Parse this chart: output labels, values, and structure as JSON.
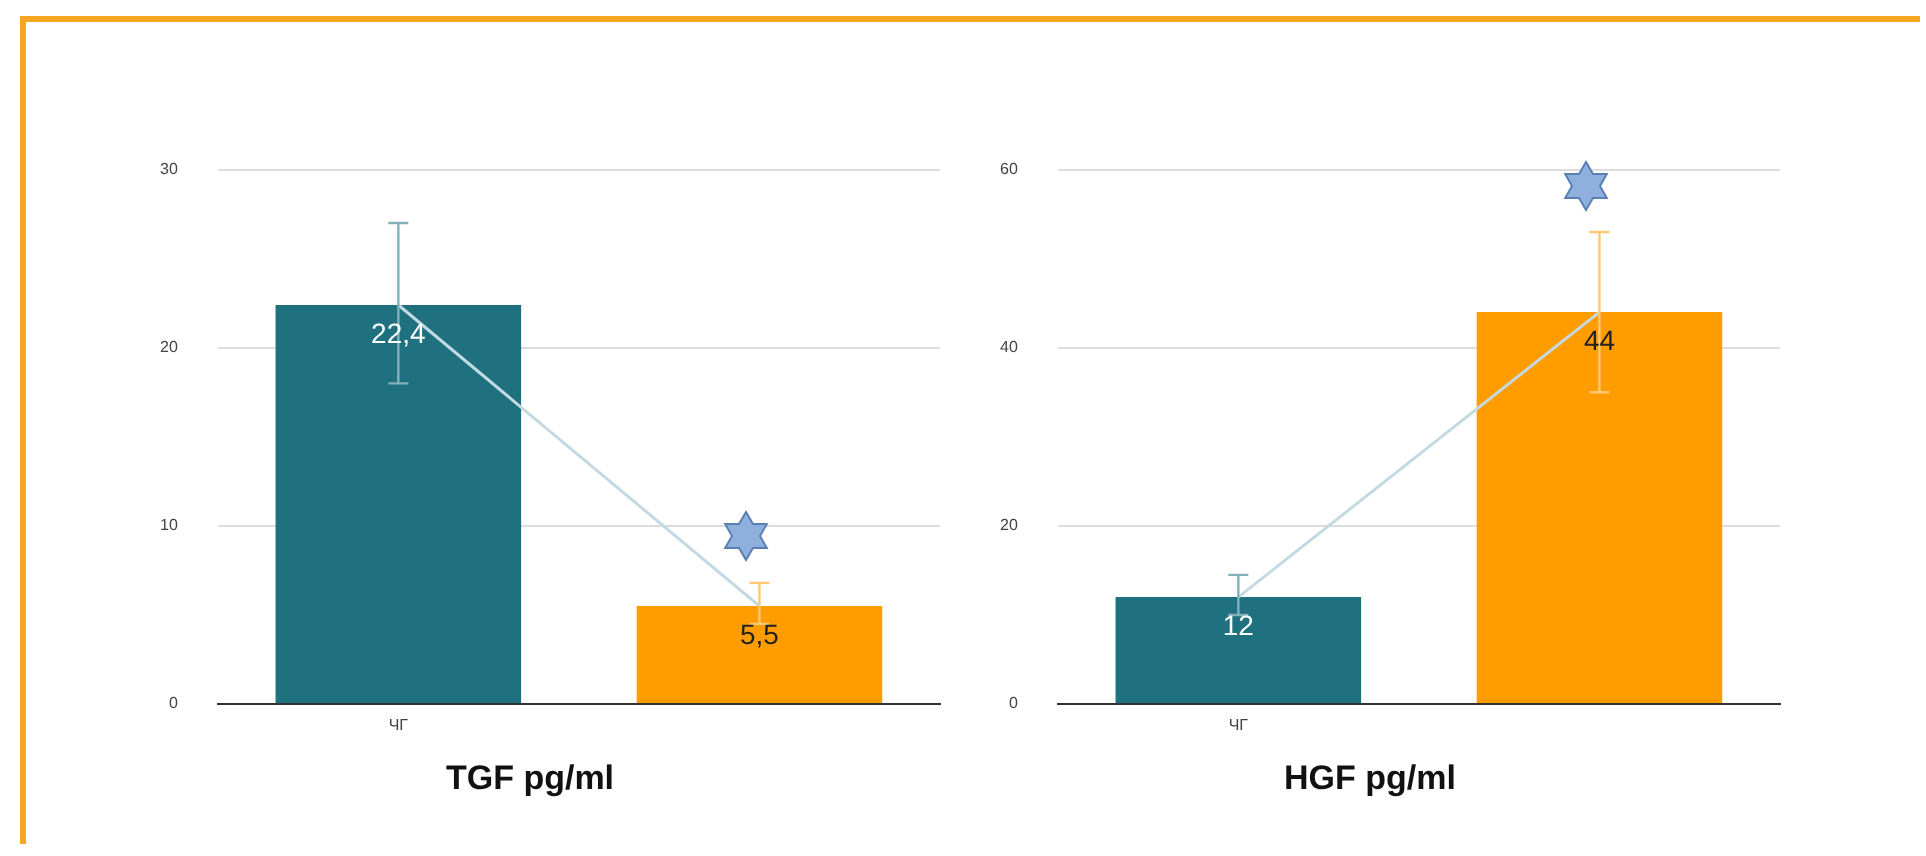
{
  "chart_data": [
    {
      "type": "bar",
      "title": "TGF pg/ml",
      "categories": [
        "ЧГ",
        null
      ],
      "ylim": [
        0,
        30
      ],
      "yticks": [
        0,
        10,
        20,
        30
      ],
      "grid": "y",
      "legend": false,
      "series": [
        {
          "colors": [
            "#1f7180",
            "#ff9c00"
          ],
          "values": [
            22.4,
            5.5
          ],
          "errors": [
            [
              18,
              27
            ],
            [
              4.5,
              6.8
            ]
          ],
          "value_labels": [
            "22,4",
            "5,5"
          ]
        },
        {
          "type": "line",
          "color": "#c3dae2",
          "values": [
            22.4,
            5.5
          ]
        }
      ]
    },
    {
      "type": "bar",
      "title": "HGF pg/ml",
      "categories": [
        "ЧГ",
        null
      ],
      "ylim": [
        0,
        60
      ],
      "yticks": [
        0,
        20,
        40,
        60
      ],
      "grid": "y",
      "legend": false,
      "series": [
        {
          "colors": [
            "#1f7180",
            "#ff9c00"
          ],
          "values": [
            12,
            44
          ],
          "errors": [
            [
              10,
              14.5
            ],
            [
              35,
              53
            ]
          ],
          "value_labels": [
            "12",
            "44"
          ]
        },
        {
          "type": "line",
          "color": "#c3dae2",
          "values": [
            12,
            44
          ]
        }
      ]
    }
  ]
}
